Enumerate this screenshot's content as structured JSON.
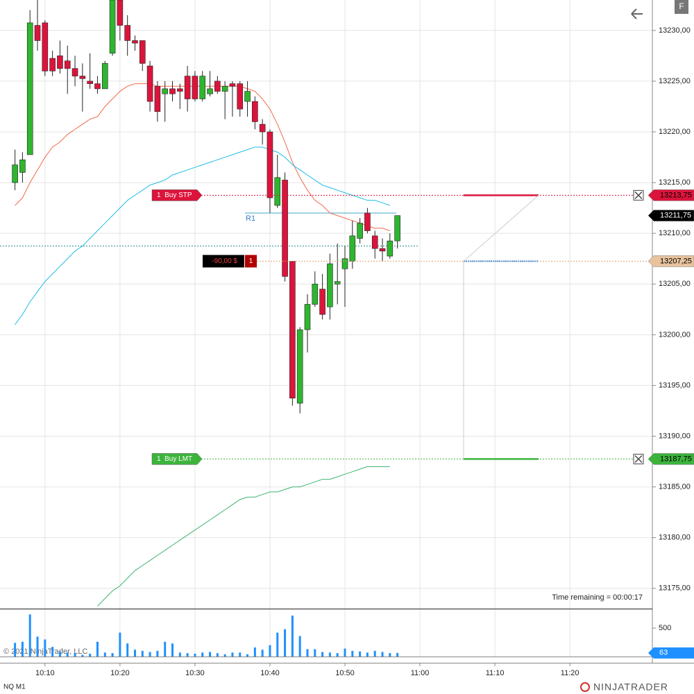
{
  "chart_data": {
    "type": "candlestick",
    "instrument": "NQ M1",
    "x": [
      "10:06",
      "10:07",
      "10:08",
      "10:09",
      "10:10",
      "10:11",
      "10:12",
      "10:13",
      "10:14",
      "10:15",
      "10:16",
      "10:17",
      "10:18",
      "10:19",
      "10:20",
      "10:21",
      "10:22",
      "10:23",
      "10:24",
      "10:25",
      "10:26",
      "10:27",
      "10:28",
      "10:29",
      "10:30",
      "10:31",
      "10:32",
      "10:33",
      "10:34",
      "10:35",
      "10:36",
      "10:37",
      "10:38",
      "10:39",
      "10:40",
      "10:41",
      "10:42",
      "10:43",
      "10:44",
      "10:45",
      "10:46",
      "10:47",
      "10:48",
      "10:49",
      "10:50",
      "10:51",
      "10:52",
      "10:53",
      "10:54",
      "10:55",
      "10:56",
      "10:57"
    ],
    "open": [
      13215,
      13216,
      13217.75,
      13230.5,
      13230.75,
      13227.25,
      13227.5,
      13227,
      13226.25,
      13225.5,
      13225,
      13224.75,
      13224.25,
      13227.75,
      13233,
      13230.5,
      13229,
      13229,
      13226.5,
      13224.5,
      13223.75,
      13224.25,
      13224.25,
      13225.5,
      13225.5,
      13223.25,
      13223.75,
      13225,
      13224,
      13224.75,
      13224.75,
      13223,
      13223,
      13220.75,
      13220,
      13212.75,
      13215.25,
      13207.25,
      13193.25,
      13200.5,
      13203,
      13204.5,
      13202.75,
      13205,
      13206.5,
      13207.25,
      13209.5,
      13212,
      13209.75,
      13208.5,
      13207.75,
      13209.25
    ],
    "high": [
      13218.25,
      13218,
      13232,
      13233,
      13231,
      13228,
      13229,
      13228.5,
      13227.5,
      13226.75,
      13227.75,
      13225.5,
      13227,
      13233,
      13233,
      13231.5,
      13229.5,
      13229,
      13227,
      13225,
      13225,
      13225,
      13224.75,
      13226.5,
      13226,
      13226,
      13226,
      13225.5,
      13225,
      13225,
      13225,
      13225,
      13223.5,
      13221.25,
      13220.25,
      13217.75,
      13216,
      13207.25,
      13200.75,
      13204,
      13206.25,
      13206,
      13208,
      13209,
      13208.75,
      13211.25,
      13211.5,
      13212.5,
      13210.25,
      13209.5,
      13210,
      13211.75
    ],
    "low": [
      13214.25,
      13215,
      13217.75,
      13228,
      13225.5,
      13225.5,
      13225.75,
      13223.75,
      13224.5,
      13222,
      13224.25,
      13223.75,
      13224.25,
      13227.5,
      13229,
      13227.5,
      13228,
      13226,
      13222,
      13221,
      13221,
      13223,
      13222.25,
      13222,
      13223,
      13223,
      13223.5,
      13223.75,
      13221.25,
      13221.5,
      13221.5,
      13221.5,
      13220.25,
      13218.75,
      13212,
      13212.5,
      13205.25,
      13193,
      13192.25,
      13198.25,
      13202.75,
      13201.5,
      13201.5,
      13203,
      13202.75,
      13206.5,
      13209,
      13210,
      13207.5,
      13207.25,
      13207.5,
      13208.5
    ],
    "close": [
      13216.75,
      13217.25,
      13230.75,
      13229,
      13226,
      13226,
      13226.25,
      13226.25,
      13225.5,
      13225.25,
      13224.75,
      13224.25,
      13226.75,
      13233,
      13230.5,
      13229,
      13228.75,
      13226.75,
      13223,
      13222,
      13224.25,
      13223.75,
      13224,
      13223.25,
      13223.25,
      13225.5,
      13224.25,
      13224,
      13224.5,
      13224.5,
      13222.25,
      13224,
      13221,
      13220,
      13213.5,
      13215.5,
      13205.75,
      13193.75,
      13200.5,
      13203,
      13205,
      13202,
      13207,
      13205.25,
      13207.5,
      13209.75,
      13211,
      13210.25,
      13208.5,
      13208.25,
      13209.25,
      13211.75
    ],
    "up_color": "#2fb52f",
    "down_color": "#dc143c",
    "indicators": [
      {
        "color": "#f2694a",
        "values": [
          13212.75,
          13213.5,
          13215,
          13216.25,
          13217.5,
          13218.5,
          13219,
          13219.75,
          13220.25,
          13220.75,
          13221.25,
          13221.5,
          13222.5,
          13223.25,
          13224,
          13224.5,
          13224.75,
          13224.75,
          13224.75,
          13224.5,
          13224.5,
          13224.5,
          13224.5,
          13224.5,
          13224.5,
          13224.5,
          13224.5,
          13224.5,
          13224.5,
          13224.5,
          13224.5,
          13224.25,
          13224,
          13223.25,
          13222.25,
          13220.75,
          13219,
          13217,
          13215.5,
          13214.25,
          13213.25,
          13212.75,
          13212,
          13211.75,
          13211.5,
          13211.25,
          13211,
          13210.75,
          13210.5,
          13210.5,
          13210.25,
          null
        ]
      },
      {
        "color": "#1ebde6",
        "values": [
          13201,
          13202,
          13203.25,
          13204.25,
          13205.25,
          13206,
          13206.75,
          13207.5,
          13208.25,
          13208.75,
          13209.5,
          13210.25,
          13211,
          13211.75,
          13212.5,
          13213.25,
          13213.75,
          13214.25,
          13214.75,
          13215,
          13215.25,
          13215.75,
          13216,
          13216.25,
          13216.5,
          13216.75,
          13217,
          13217.25,
          13217.5,
          13217.75,
          13218,
          13218.25,
          13218.5,
          13218.5,
          13218.25,
          13218,
          13217.5,
          13216.75,
          13216.25,
          13215.75,
          13215.25,
          13214.75,
          13214.5,
          13214.25,
          13214,
          13213.75,
          13213.5,
          13213.25,
          13213.25,
          13213,
          13212.75,
          null
        ]
      },
      {
        "color": "#3cb371",
        "values": [
          null,
          null,
          null,
          null,
          null,
          null,
          null,
          null,
          null,
          null,
          null,
          13173.25,
          13174,
          13174.75,
          13175.25,
          13176,
          13176.75,
          13177.25,
          13177.75,
          13178.25,
          13178.75,
          13179.25,
          13179.75,
          13180.25,
          13180.75,
          13181.25,
          13181.75,
          13182.25,
          13182.75,
          13183.25,
          13183.75,
          13184,
          13184,
          13184.25,
          13184.5,
          13184.5,
          13184.75,
          13185,
          13185,
          13185.25,
          13185.5,
          13185.75,
          13185.75,
          13186,
          13186.25,
          13186.5,
          13186.75,
          13187,
          13187,
          13187,
          13187,
          null
        ]
      }
    ],
    "volume": {
      "color": "#1e90ff",
      "values": [
        240,
        260,
        740,
        350,
        300,
        170,
        90,
        70,
        60,
        30,
        50,
        260,
        70,
        60,
        420,
        230,
        120,
        100,
        80,
        100,
        260,
        230,
        70,
        60,
        50,
        70,
        80,
        60,
        40,
        70,
        70,
        40,
        160,
        120,
        200,
        420,
        480,
        720,
        360,
        130,
        130,
        80,
        70,
        60,
        140,
        100,
        90,
        70,
        100,
        80,
        60,
        63
      ],
      "ylim": [
        0,
        830
      ],
      "yticks": [
        500
      ]
    },
    "xlim": [
      "10:04",
      "11:31"
    ],
    "xticks": [
      "10:10",
      "10:20",
      "10:30",
      "10:40",
      "10:50",
      "11:00",
      "11:10",
      "11:20"
    ],
    "ylim": [
      13173,
      13233
    ],
    "yticks": [
      {
        "value": 13175,
        "label": "13175,00"
      },
      {
        "value": 13180,
        "label": "13180,00"
      },
      {
        "value": 13185,
        "label": "13185,00"
      },
      {
        "value": 13190,
        "label": "13190,00"
      },
      {
        "value": 13195,
        "label": "13195,00"
      },
      {
        "value": 13200,
        "label": "13200,00"
      },
      {
        "value": 13205,
        "label": "13205,00"
      },
      {
        "value": 13210,
        "label": "13210,00"
      },
      {
        "value": 13215,
        "label": "13215,00"
      },
      {
        "value": 13220,
        "label": "13220,00"
      },
      {
        "value": 13225,
        "label": "13225,00"
      },
      {
        "value": 13230,
        "label": "13230,00"
      }
    ],
    "current_price": 13211.75,
    "current_price_label": "13211,75",
    "orders": [
      {
        "label": "1  Buy STP",
        "price": 13213.75,
        "price_label": "13213,75",
        "color": "#dc143c"
      },
      {
        "label": "1  Buy LMT",
        "price": 13187.75,
        "price_label": "13187,75",
        "color": "#3cb43c"
      }
    ],
    "position": {
      "pnl_label": "-90,00 $",
      "quantity": 1,
      "price": 13207.25,
      "price_label": "13207,25"
    },
    "pivot": {
      "label": "R1",
      "price": 13212
    },
    "reference_line": 13208.75,
    "time_remaining": "Time remaining = 00:00:17",
    "copyright": "© 2021 NinjaTrader, LLC",
    "logo": "NINJATRADER",
    "button": "F"
  }
}
